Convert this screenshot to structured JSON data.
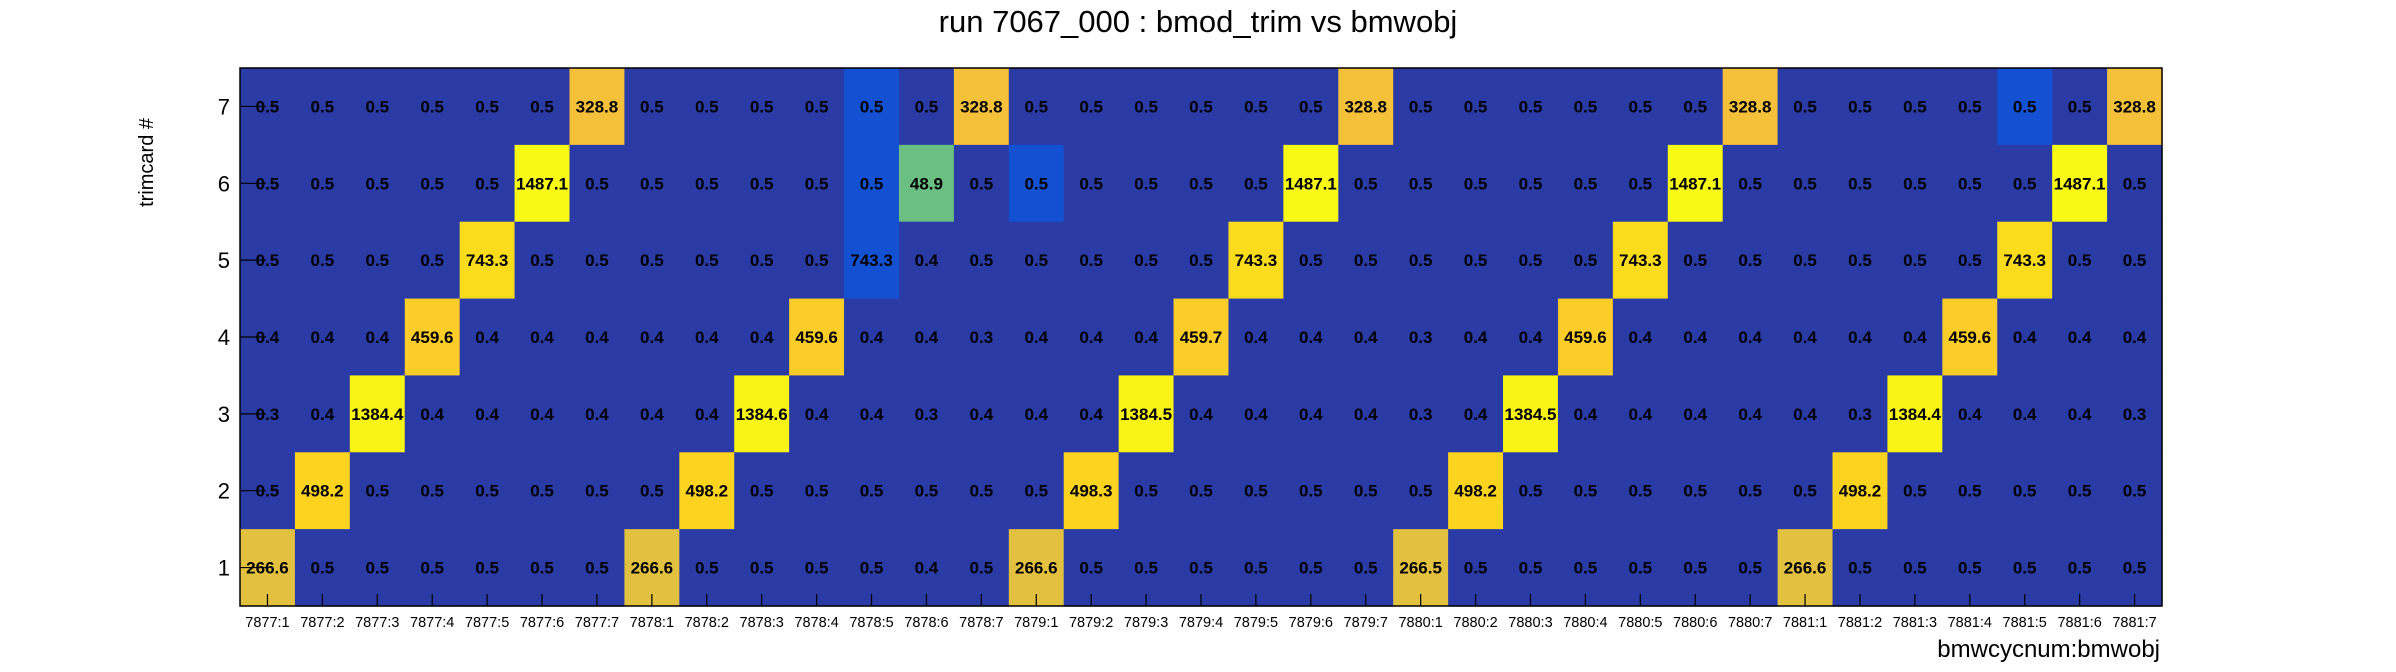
{
  "chart_data": {
    "type": "heatmap",
    "title": "run 7067_000 : bmod_trim vs bmwobj",
    "xlabel": "bmwcycnum:bmwobj",
    "ylabel": "trimcard #",
    "x_categories": [
      "7877:1",
      "7877:2",
      "7877:3",
      "7877:4",
      "7877:5",
      "7877:6",
      "7877:7",
      "7878:1",
      "7878:2",
      "7878:3",
      "7878:4",
      "7878:5",
      "7878:6",
      "7878:7",
      "7879:1",
      "7879:2",
      "7879:3",
      "7879:4",
      "7879:5",
      "7879:6",
      "7879:7",
      "7880:1",
      "7880:2",
      "7880:3",
      "7880:4",
      "7880:5",
      "7880:6",
      "7880:7",
      "7881:1",
      "7881:2",
      "7881:3",
      "7881:4",
      "7881:5",
      "7881:6",
      "7881:7"
    ],
    "y_categories": [
      "1",
      "2",
      "3",
      "4",
      "5",
      "6",
      "7"
    ],
    "grid": false,
    "rows": [
      {
        "y": "7",
        "values": [
          0.5,
          0.5,
          0.5,
          0.5,
          0.5,
          0.5,
          328.8,
          0.5,
          0.5,
          0.5,
          0.5,
          0.5,
          0.5,
          328.8,
          0.5,
          0.5,
          0.5,
          0.5,
          0.5,
          0.5,
          328.8,
          0.5,
          0.5,
          0.5,
          0.5,
          0.5,
          0.5,
          328.8,
          0.5,
          0.5,
          0.5,
          0.5,
          0.5,
          0.5,
          328.8
        ],
        "labels": [
          "0.5",
          "0.5",
          "0.5",
          "0.5",
          "0.5",
          "0.5",
          "328.8",
          "0.5",
          "0.5",
          "0.5",
          "0.5",
          "0.5",
          "0.5",
          "328.8",
          "0.5",
          "0.5",
          "0.5",
          "0.5",
          "0.5",
          "0.5",
          "328.8",
          "0.5",
          "0.5",
          "0.5",
          "0.5",
          "0.5",
          "0.5",
          "328.8",
          "0.5",
          "0.5",
          "0.5",
          "0.5",
          "0.5",
          "0.5",
          "328.8"
        ]
      },
      {
        "y": "6",
        "values": [
          0.5,
          0.5,
          0.5,
          0.5,
          0.5,
          1487.1,
          0.5,
          0.5,
          0.5,
          0.5,
          0.5,
          0.5,
          48.9,
          0.5,
          0.5,
          0.5,
          0.5,
          0.5,
          0.5,
          1487.1,
          0.5,
          0.5,
          0.5,
          0.5,
          0.5,
          0.5,
          1487.1,
          0.5,
          0.5,
          0.5,
          0.5,
          0.5,
          0.5,
          1487.1,
          0.5
        ],
        "labels": [
          "0.5",
          "0.5",
          "0.5",
          "0.5",
          "0.5",
          "1487.1",
          "0.5",
          "0.5",
          "0.5",
          "0.5",
          "0.5",
          "0.5",
          "48.9",
          "0.5",
          "0.5",
          "0.5",
          "0.5",
          "0.5",
          "0.5",
          "1487.1",
          "0.5",
          "0.5",
          "0.5",
          "0.5",
          "0.5",
          "0.5",
          "1487.1",
          "0.5",
          "0.5",
          "0.5",
          "0.5",
          "0.5",
          "0.5",
          "1487.1",
          "0.5"
        ]
      },
      {
        "y": "5",
        "values": [
          0.5,
          0.5,
          0.5,
          0.5,
          743.3,
          0.5,
          0.5,
          0.5,
          0.5,
          0.5,
          0.5,
          743.3,
          0.4,
          0.5,
          0.5,
          0.5,
          0.5,
          0.5,
          743.3,
          0.5,
          0.5,
          0.5,
          0.5,
          0.5,
          0.5,
          743.3,
          0.5,
          0.5,
          0.5,
          0.5,
          0.5,
          0.5,
          743.3,
          0.5,
          0.5
        ],
        "labels": [
          "0.5",
          "0.5",
          "0.5",
          "0.5",
          "743.3",
          "0.5",
          "0.5",
          "0.5",
          "0.5",
          "0.5",
          "0.5",
          "743.3",
          "0.4",
          "0.5",
          "0.5",
          "0.5",
          "0.5",
          "0.5",
          "743.3",
          "0.5",
          "0.5",
          "0.5",
          "0.5",
          "0.5",
          "0.5",
          "743.3",
          "0.5",
          "0.5",
          "0.5",
          "0.5",
          "0.5",
          "0.5",
          "743.3",
          "0.5",
          "0.5"
        ]
      },
      {
        "y": "4",
        "values": [
          0.4,
          0.4,
          0.4,
          459.6,
          0.4,
          0.4,
          0.4,
          0.4,
          0.4,
          0.4,
          459.6,
          0.4,
          0.4,
          0.3,
          0.4,
          0.4,
          0.4,
          459.7,
          0.4,
          0.4,
          0.4,
          0.3,
          0.4,
          0.4,
          459.6,
          0.4,
          0.4,
          0.4,
          0.4,
          0.4,
          0.4,
          459.6,
          0.4,
          0.4,
          0.4
        ],
        "labels": [
          "0.4",
          "0.4",
          "0.4",
          "459.6",
          "0.4",
          "0.4",
          "0.4",
          "0.4",
          "0.4",
          "0.4",
          "459.6",
          "0.4",
          "0.4",
          "0.3",
          "0.4",
          "0.4",
          "0.4",
          "459.7",
          "0.4",
          "0.4",
          "0.4",
          "0.3",
          "0.4",
          "0.4",
          "459.6",
          "0.4",
          "0.4",
          "0.4",
          "0.4",
          "0.4",
          "0.4",
          "459.6",
          "0.4",
          "0.4",
          "0.4"
        ]
      },
      {
        "y": "3",
        "values": [
          0.3,
          0.4,
          1384.4,
          0.4,
          0.4,
          0.4,
          0.4,
          0.4,
          0.4,
          1384.6,
          0.4,
          0.4,
          0.3,
          0.4,
          0.4,
          0.4,
          1384.5,
          0.4,
          0.4,
          0.4,
          0.4,
          0.3,
          0.4,
          1384.5,
          0.4,
          0.4,
          0.4,
          0.4,
          0.4,
          0.3,
          1384.4,
          0.4,
          0.4,
          0.4,
          0.3
        ],
        "labels": [
          "0.3",
          "0.4",
          "1384.4",
          "0.4",
          "0.4",
          "0.4",
          "0.4",
          "0.4",
          "0.4",
          "1384.6",
          "0.4",
          "0.4",
          "0.3",
          "0.4",
          "0.4",
          "0.4",
          "1384.5",
          "0.4",
          "0.4",
          "0.4",
          "0.4",
          "0.3",
          "0.4",
          "1384.5",
          "0.4",
          "0.4",
          "0.4",
          "0.4",
          "0.4",
          "0.3",
          "1384.4",
          "0.4",
          "0.4",
          "0.4",
          "0.3"
        ]
      },
      {
        "y": "2",
        "values": [
          0.5,
          498.2,
          0.5,
          0.5,
          0.5,
          0.5,
          0.5,
          0.5,
          498.2,
          0.5,
          0.5,
          0.5,
          0.5,
          0.5,
          0.5,
          498.3,
          0.5,
          0.5,
          0.5,
          0.5,
          0.5,
          0.5,
          498.2,
          0.5,
          0.5,
          0.5,
          0.5,
          0.5,
          0.5,
          498.2,
          0.5,
          0.5,
          0.5,
          0.5,
          0.5
        ],
        "labels": [
          "0.5",
          "498.2",
          "0.5",
          "0.5",
          "0.5",
          "0.5",
          "0.5",
          "0.5",
          "498.2",
          "0.5",
          "0.5",
          "0.5",
          "0.5",
          "0.5",
          "0.5",
          "498.3",
          "0.5",
          "0.5",
          "0.5",
          "0.5",
          "0.5",
          "0.5",
          "498.2",
          "0.5",
          "0.5",
          "0.5",
          "0.5",
          "0.5",
          "0.5",
          "498.2",
          "0.5",
          "0.5",
          "0.5",
          "0.5",
          "0.5"
        ]
      },
      {
        "y": "1",
        "values": [
          266.6,
          0.5,
          0.5,
          0.5,
          0.5,
          0.5,
          0.5,
          266.6,
          0.5,
          0.5,
          0.5,
          0.5,
          0.4,
          0.5,
          266.6,
          0.5,
          0.5,
          0.5,
          0.5,
          0.5,
          0.5,
          266.5,
          0.5,
          0.5,
          0.5,
          0.5,
          0.5,
          0.5,
          266.6,
          0.5,
          0.5,
          0.5,
          0.5,
          0.5,
          0.5
        ],
        "labels": [
          "266.6",
          "0.5",
          "0.5",
          "0.5",
          "0.5",
          "0.5",
          "0.5",
          "266.6",
          "0.5",
          "0.5",
          "0.5",
          "0.5",
          "0.4",
          "0.5",
          "266.6",
          "0.5",
          "0.5",
          "0.5",
          "0.5",
          "0.5",
          "0.5",
          "266.5",
          "0.5",
          "0.5",
          "0.5",
          "0.5",
          "0.5",
          "0.5",
          "266.6",
          "0.5",
          "0.5",
          "0.5",
          "0.5",
          "0.5",
          "0.5"
        ]
      }
    ],
    "highlight_cells": [
      {
        "y": "7",
        "x": "7878:5",
        "color": "#1450d2"
      },
      {
        "y": "7",
        "x": "7881:5",
        "color": "#1450d2"
      },
      {
        "y": "6",
        "x": "7878:5",
        "color": "#1450d2"
      },
      {
        "y": "6",
        "x": "7879:1",
        "color": "#1450d2"
      },
      {
        "y": "5",
        "x": "7878:5",
        "color": "#1450d2"
      }
    ],
    "colors": {
      "base": "#2a3ba6",
      "low_mid": "#1450d2",
      "mid": "#6cbf82",
      "high_266": "#e2c040",
      "high_328": "#f5c13b",
      "high_459": "#fccc28",
      "high_498": "#fcd420",
      "high_743": "#fbdc1c",
      "high_1384": "#f9f316",
      "high_1487": "#f9f916"
    }
  }
}
